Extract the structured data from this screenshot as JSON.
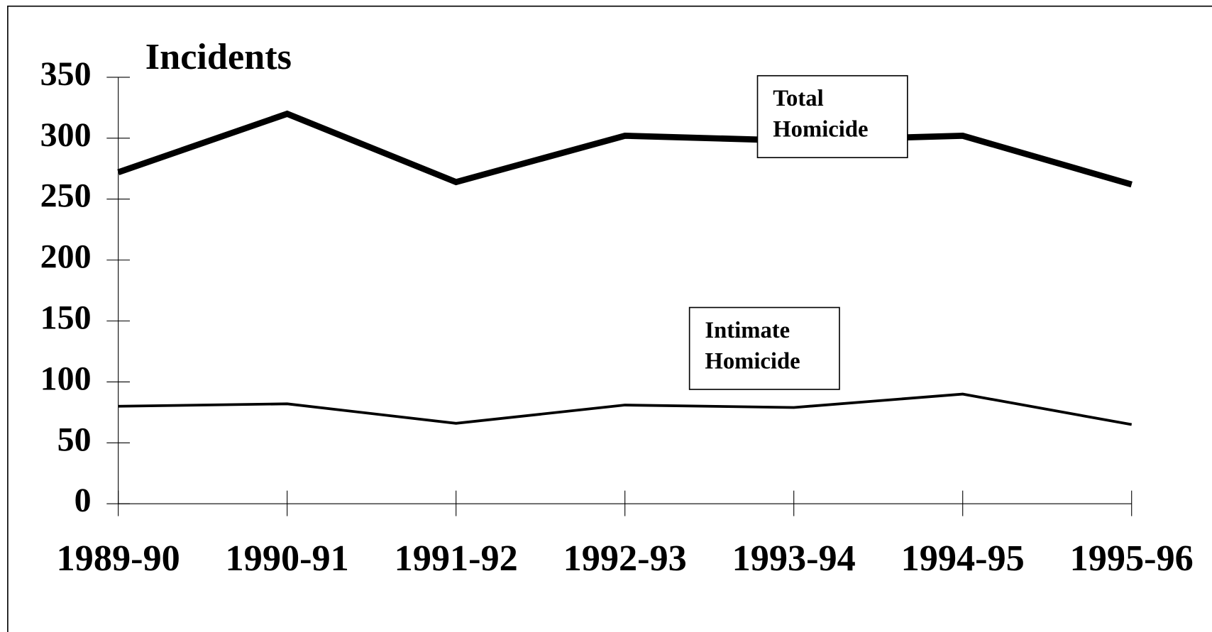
{
  "chart_data": {
    "type": "line",
    "title": "Incidents",
    "categories": [
      "1989-90",
      "1990-91",
      "1991-92",
      "1992-93",
      "1993-94",
      "1994-95",
      "1995-96"
    ],
    "series": [
      {
        "color": "#000000",
        "values": [
          272,
          320,
          264,
          302,
          298,
          302,
          262
        ]
      },
      {
        "color": "#000000",
        "values": [
          80,
          82,
          66,
          81,
          79,
          90,
          65
        ]
      }
    ],
    "annotations": [
      {
        "lines": [
          "Total",
          "Homicide"
        ]
      },
      {
        "lines": [
          "Intimate",
          "Homicide"
        ]
      }
    ],
    "ylim": [
      0,
      350
    ],
    "yticks": [
      0,
      50,
      100,
      150,
      200,
      250,
      300,
      350
    ],
    "grid": false
  }
}
